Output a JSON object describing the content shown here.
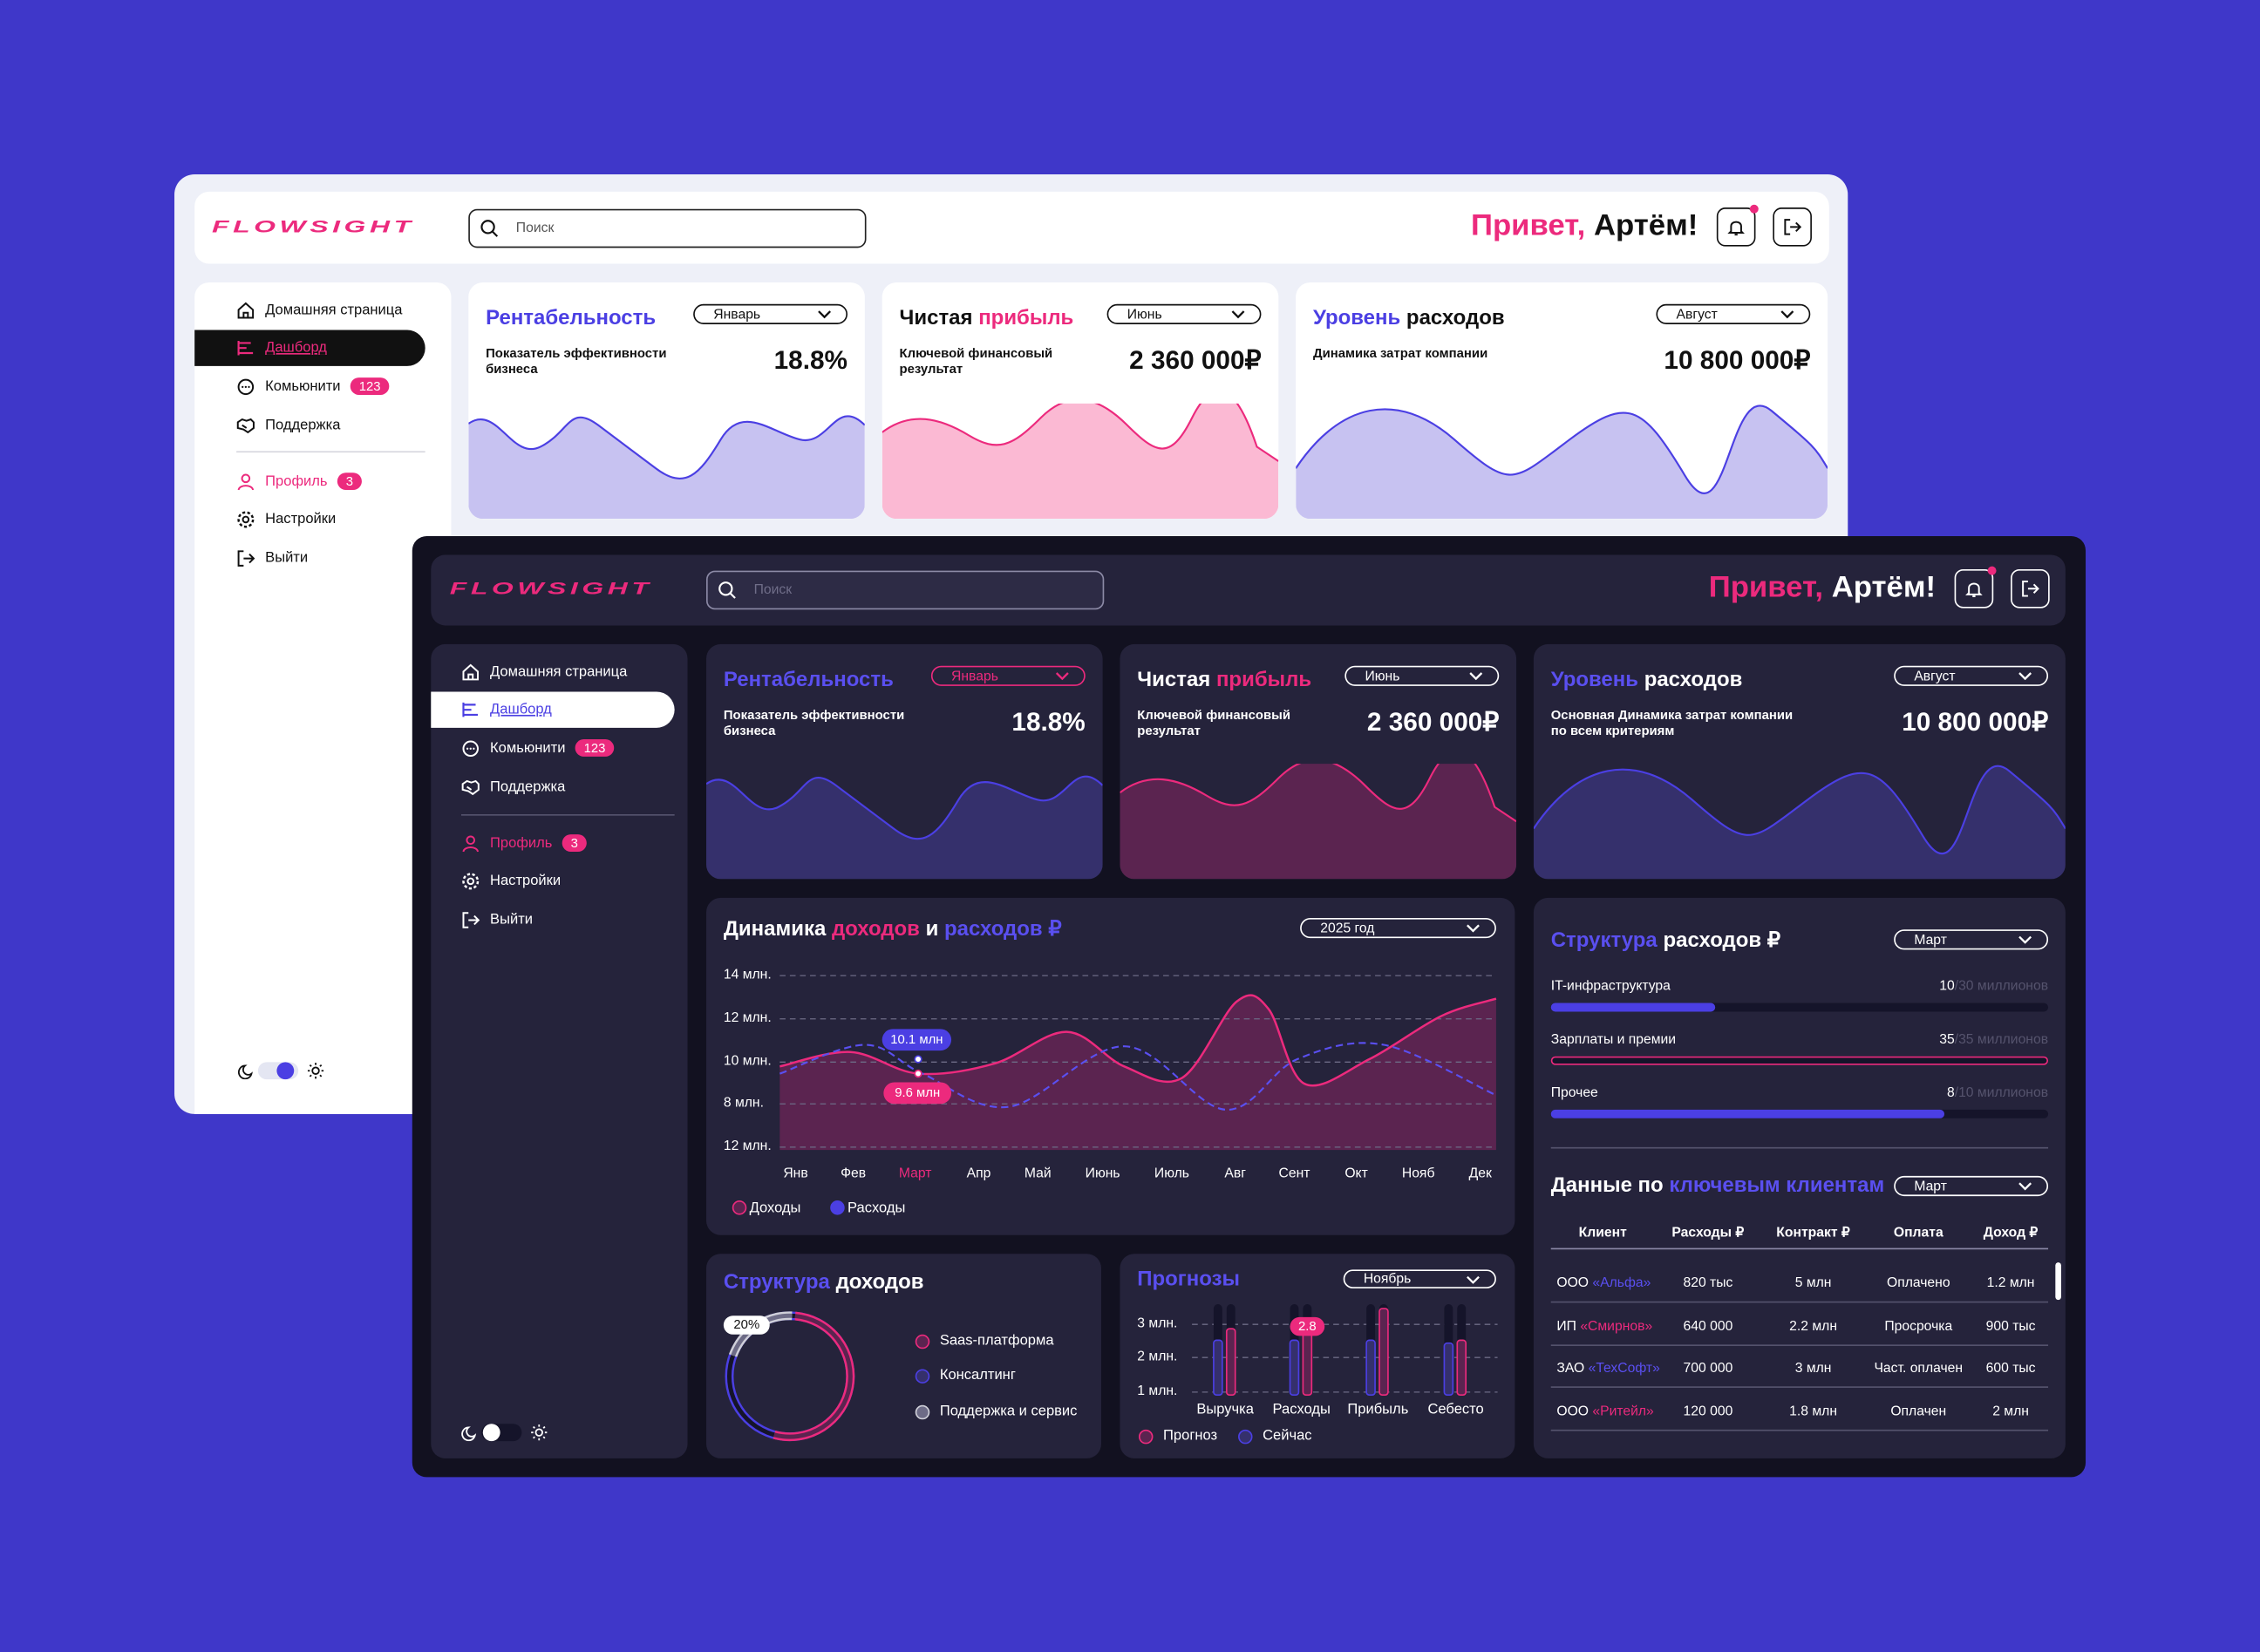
{
  "brand": "FLOWSIGHT",
  "search_placeholder": "Поиск",
  "greeting": {
    "hello": "Привет,",
    "name": "Артём!"
  },
  "nav": [
    {
      "label": "Домашняя страница"
    },
    {
      "label": "Дашборд"
    },
    {
      "label": "Комьюнити",
      "badge": "123"
    },
    {
      "label": "Поддержка"
    },
    {
      "label": "Профиль",
      "badge": "3"
    },
    {
      "label": "Настройки"
    },
    {
      "label": "Выйти"
    }
  ],
  "kpi": [
    {
      "title": [
        {
          "text": "Рентабельность",
          "accent": "blue"
        }
      ],
      "period": "Январь",
      "desc": "Показатель эффективности бизнеса",
      "value": "18.8%"
    },
    {
      "title": [
        {
          "text": "Чистая"
        },
        {
          "text": "прибыль",
          "accent": "pink"
        }
      ],
      "period": "Июнь",
      "desc": "Ключевой финансовый результат",
      "value": "2 360 000₽"
    },
    {
      "title": [
        {
          "text": "Уровень",
          "accent": "blue"
        },
        {
          "text": "расходов"
        }
      ],
      "period": "Август",
      "desc": "Динамика затрат компании",
      "desc_dark": "Основная Динамика затрат компании по всем критериям",
      "value": "10 800 000₽"
    }
  ],
  "dynamics": {
    "title": [
      {
        "text": "Динамика"
      },
      {
        "text": "доходов",
        "accent": "pink"
      },
      {
        "text": "и"
      },
      {
        "text": "расходов ₽",
        "accent": "blue"
      }
    ],
    "period": "2025 год",
    "y_labels": [
      "14 млн.",
      "12 млн.",
      "10 млн.",
      "8 млн.",
      "12 млн."
    ],
    "months": [
      "Янв",
      "Фев",
      "Март",
      "Апр",
      "Май",
      "Июнь",
      "Июль",
      "Авг",
      "Сент",
      "Окт",
      "Нояб",
      "Дек"
    ],
    "tooltip_expense": "10.1 млн",
    "tooltip_income": "9.6 млн",
    "legend": [
      "Доходы",
      "Расходы"
    ]
  },
  "expense_structure": {
    "title": [
      {
        "text": "Структура",
        "accent": "blue"
      },
      {
        "text": "расходов ₽"
      }
    ],
    "period": "Март",
    "items": [
      {
        "label": "IT-инфраструктура",
        "amount": "10",
        "of": "/30 миллионов"
      },
      {
        "label": "Зарплаты и премии",
        "amount": "35",
        "of": "/35 миллионов"
      },
      {
        "label": "Прочее",
        "amount": "8",
        "of": "/10 миллионов"
      }
    ]
  },
  "clients": {
    "title": [
      {
        "text": "Данные по"
      },
      {
        "text": "ключевым клиентам",
        "accent": "blue"
      }
    ],
    "period": "Март",
    "columns": [
      "Клиент",
      "Расходы ₽",
      "Контракт ₽",
      "Оплата",
      "Доход ₽"
    ],
    "rows": [
      {
        "type": "ООО",
        "name": "«Альфа»",
        "cells": [
          "820 тыс",
          "5 млн",
          "Оплачено",
          "1.2 млн"
        ]
      },
      {
        "type": "ИП",
        "name": "«Смирнов»",
        "cells": [
          "640 000",
          "2.2 млн",
          "Просрочка",
          "900 тыс"
        ]
      },
      {
        "type": "ЗАО",
        "name": "«ТехСофт»",
        "cells": [
          "700 000",
          "3 млн",
          "Част. оплачен",
          "600 тыс"
        ]
      },
      {
        "type": "ООО",
        "name": "«Ритейл»",
        "cells": [
          "120 000",
          "1.8 млн",
          "Оплачен",
          "2 млн"
        ]
      }
    ]
  },
  "income_structure": {
    "title": [
      {
        "text": "Структура",
        "accent": "blue"
      },
      {
        "text": "доходов"
      }
    ],
    "share": "20%",
    "legend": [
      "Saas-платформа",
      "Консалтинг",
      "Поддержка и сервис"
    ]
  },
  "forecast": {
    "title": [
      {
        "text": "Прогнозы",
        "accent": "blue"
      }
    ],
    "period": "Ноябрь",
    "y_labels": [
      "3 млн.",
      "2 млн.",
      "1 млн."
    ],
    "categories": [
      "Выручка",
      "Расходы",
      "Прибыль",
      "Себесто"
    ],
    "tooltip": "2.8",
    "legend": [
      "Прогноз",
      "Сейчас"
    ]
  }
}
